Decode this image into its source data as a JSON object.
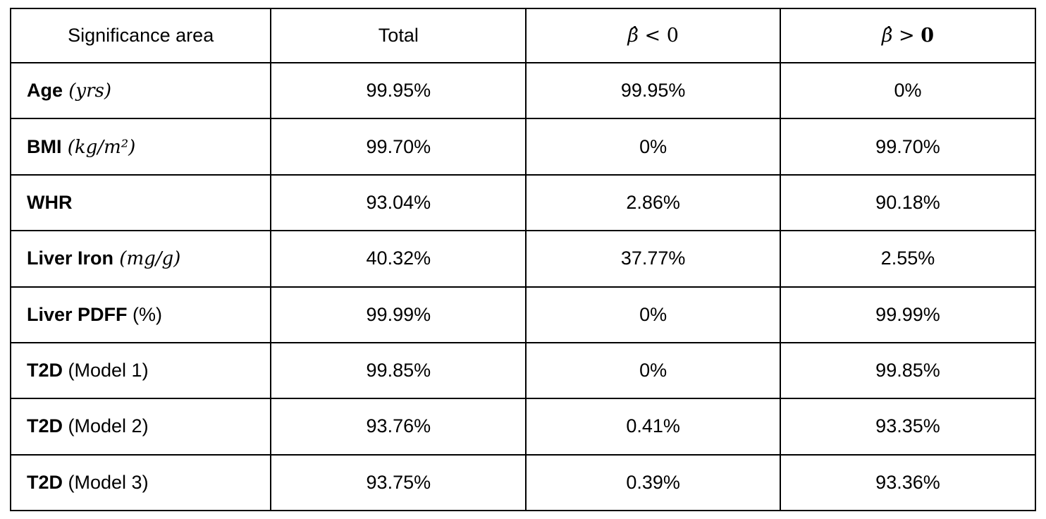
{
  "colors": {
    "border": "#000000",
    "text": "#000000",
    "background": "#ffffff"
  },
  "table": {
    "headers": {
      "col1": "Significance area",
      "col2": "Total",
      "col3_prefix": "β̂ < ",
      "col3_zero": "0",
      "col4_prefix": "β̂ > ",
      "col4_zero": "0"
    },
    "rows": [
      {
        "name": "Age",
        "unit": " (yrs)",
        "unit_class": "unit math",
        "total": "99.95%",
        "neg": "99.95%",
        "pos": "0%"
      },
      {
        "name": "BMI",
        "unit": " (kg/m²)",
        "unit_class": "unit math",
        "total": "99.70%",
        "neg": "0%",
        "pos": "99.70%"
      },
      {
        "name": "WHR",
        "unit": "",
        "unit_class": "unit",
        "total": "93.04%",
        "neg": "2.86%",
        "pos": "90.18%"
      },
      {
        "name": "Liver Iron",
        "unit": " (mg/g)",
        "unit_class": "unit math",
        "total": "40.32%",
        "neg": "37.77%",
        "pos": "2.55%"
      },
      {
        "name": "Liver PDFF",
        "unit": " (%)",
        "unit_class": "unit",
        "total": "99.99%",
        "neg": "0%",
        "pos": "99.99%"
      },
      {
        "name": "T2D",
        "unit": " (Model 1)",
        "unit_class": "unit",
        "total": "99.85%",
        "neg": "0%",
        "pos": "99.85%"
      },
      {
        "name": "T2D",
        "unit": " (Model 2)",
        "unit_class": "unit",
        "total": "93.76%",
        "neg": "0.41%",
        "pos": "93.35%"
      },
      {
        "name": "T2D",
        "unit": " (Model 3)",
        "unit_class": "unit",
        "total": "93.75%",
        "neg": "0.39%",
        "pos": "93.36%"
      }
    ]
  }
}
